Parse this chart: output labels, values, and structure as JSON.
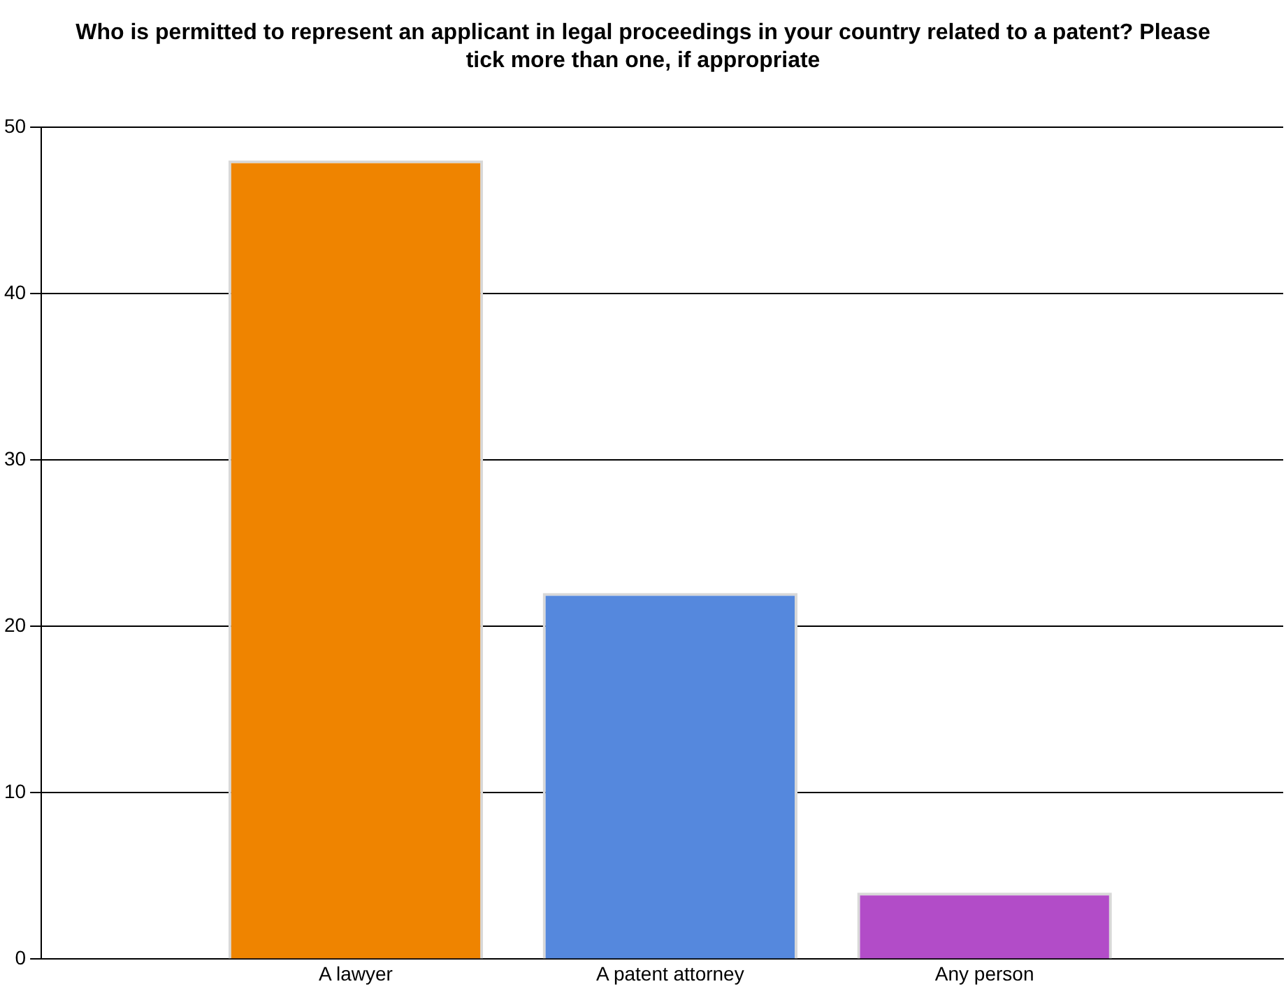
{
  "chart_data": {
    "type": "bar",
    "title": "Who is permitted to represent an applicant in legal proceedings in your country related to a patent?  Please tick more than one, if appropriate",
    "categories": [
      "A lawyer",
      "A patent attorney",
      "Any person"
    ],
    "values": [
      48,
      22,
      4
    ],
    "colors": [
      "#ef8400",
      "#5588dd",
      "#b24cc8"
    ],
    "ylim": [
      0,
      50
    ],
    "yticks": [
      0,
      10,
      20,
      30,
      40,
      50
    ],
    "grid": "y"
  }
}
